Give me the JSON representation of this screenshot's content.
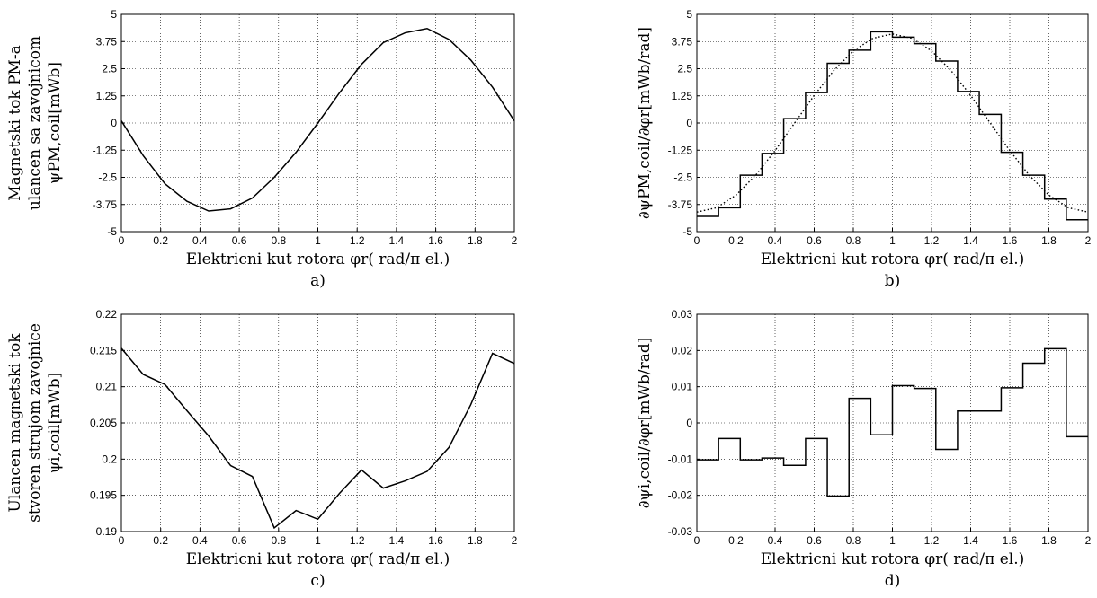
{
  "chart_data": [
    {
      "id": "a",
      "type": "line",
      "panel_label": "a)",
      "xlabel": "Elektricni kut rotora  φr( rad/π el.)",
      "ylabel_lines": [
        "Magnetski tok PM-a",
        "ulancen sa zavojnicom",
        "ψPM,coil[mWb]"
      ],
      "xlim": [
        0,
        2
      ],
      "ylim": [
        -5,
        5
      ],
      "xticks": [
        "0",
        "0.2",
        "0.4",
        "0.6",
        "0.8",
        "1",
        "1.2",
        "1.4",
        "1.6",
        "1.8",
        "2"
      ],
      "yticks": [
        "-5",
        "-3.75",
        "-2.5",
        "-1.25",
        "0",
        "1.25",
        "2.5",
        "3.75",
        "5"
      ],
      "grid": true,
      "series": [
        {
          "style": "solid",
          "x": [
            0,
            0.111,
            0.222,
            0.333,
            0.444,
            0.556,
            0.667,
            0.778,
            0.889,
            1.0,
            1.111,
            1.222,
            1.333,
            1.444,
            1.556,
            1.667,
            1.778,
            1.889,
            2.0
          ],
          "y": [
            0.1,
            -1.5,
            -2.8,
            -3.6,
            -4.05,
            -3.95,
            -3.45,
            -2.5,
            -1.35,
            0.0,
            1.4,
            2.7,
            3.7,
            4.15,
            4.35,
            3.85,
            2.9,
            1.65,
            0.1
          ]
        }
      ]
    },
    {
      "id": "b",
      "type": "line",
      "panel_label": "b)",
      "xlabel": "Elektricni kut rotora  φr( rad/π el.)",
      "ylabel_lines": [
        "∂ψPM,coil/∂φr[mWb/rad]"
      ],
      "xlim": [
        0,
        2
      ],
      "ylim": [
        -5,
        5
      ],
      "xticks": [
        "0",
        "0.2",
        "0.4",
        "0.6",
        "0.8",
        "1",
        "1.2",
        "1.4",
        "1.6",
        "1.8",
        "2"
      ],
      "yticks": [
        "-5",
        "-3.75",
        "-2.5",
        "-1.25",
        "0",
        "1.25",
        "2.5",
        "3.75",
        "5"
      ],
      "grid": true,
      "series": [
        {
          "style": "step",
          "x": [
            0,
            0.111,
            0.222,
            0.333,
            0.444,
            0.556,
            0.667,
            0.778,
            0.889,
            1.0,
            1.111,
            1.222,
            1.333,
            1.444,
            1.556,
            1.667,
            1.778,
            1.889,
            2.0
          ],
          "y": [
            -4.3,
            -3.9,
            -2.4,
            -1.4,
            0.2,
            1.4,
            2.75,
            3.35,
            4.2,
            3.95,
            3.65,
            2.85,
            1.45,
            0.4,
            -1.35,
            -2.4,
            -3.5,
            -4.45,
            -4.45
          ]
        },
        {
          "style": "dotted",
          "x": [
            0,
            0.1,
            0.2,
            0.3,
            0.4,
            0.5,
            0.6,
            0.7,
            0.8,
            0.9,
            1.0,
            1.1,
            1.2,
            1.3,
            1.4,
            1.5,
            1.6,
            1.7,
            1.8,
            1.9,
            2.0
          ],
          "y": [
            -4.1,
            -3.9,
            -3.32,
            -2.41,
            -1.27,
            0.0,
            1.27,
            2.41,
            3.32,
            3.9,
            4.1,
            3.9,
            3.32,
            2.41,
            1.27,
            0.0,
            -1.27,
            -2.41,
            -3.32,
            -3.9,
            -4.1
          ]
        }
      ]
    },
    {
      "id": "c",
      "type": "line",
      "panel_label": "c)",
      "xlabel": "Elektricni kut rotora  φr( rad/π el.)",
      "ylabel_lines": [
        "Ulancen magnetski tok",
        "stvoren strujom zavojnice",
        "ψi,coil[mWb]"
      ],
      "xlim": [
        0,
        2
      ],
      "ylim": [
        0.19,
        0.22
      ],
      "xticks": [
        "0",
        "0.2",
        "0.4",
        "0.6",
        "0.8",
        "1",
        "1.2",
        "1.4",
        "1.6",
        "1.8",
        "2"
      ],
      "yticks": [
        "0.19",
        "0.195",
        "0.2",
        "0.205",
        "0.21",
        "0.215",
        "0.22"
      ],
      "grid": true,
      "series": [
        {
          "style": "solid",
          "x": [
            0,
            0.111,
            0.222,
            0.333,
            0.444,
            0.556,
            0.667,
            0.778,
            0.889,
            1.0,
            1.111,
            1.222,
            1.333,
            1.444,
            1.556,
            1.667,
            1.778,
            1.889,
            2.0
          ],
          "y": [
            0.2153,
            0.2117,
            0.2103,
            0.2067,
            0.2032,
            0.1991,
            0.1976,
            0.1905,
            0.1929,
            0.1917,
            0.1953,
            0.1985,
            0.196,
            0.197,
            0.1983,
            0.2016,
            0.2075,
            0.2146,
            0.2132
          ]
        }
      ]
    },
    {
      "id": "d",
      "type": "line",
      "panel_label": "d)",
      "xlabel": "Elektricni kut rotora  φr( rad/π el.)",
      "ylabel_lines": [
        "∂ψi,coil/∂φr[mWb/rad]"
      ],
      "xlim": [
        0,
        2
      ],
      "ylim": [
        -0.03,
        0.03
      ],
      "xticks": [
        "0",
        "0.2",
        "0.4",
        "0.6",
        "0.8",
        "1",
        "1.2",
        "1.4",
        "1.6",
        "1.8",
        "2"
      ],
      "yticks": [
        "-0.03",
        "-0.02",
        "-0.01",
        "0",
        "0.01",
        "0.02",
        "0.03"
      ],
      "grid": true,
      "series": [
        {
          "style": "step",
          "x": [
            0,
            0.111,
            0.222,
            0.333,
            0.444,
            0.556,
            0.667,
            0.778,
            0.889,
            1.0,
            1.111,
            1.222,
            1.333,
            1.444,
            1.556,
            1.667,
            1.778,
            1.889,
            2.0
          ],
          "y": [
            -0.0102,
            -0.0043,
            -0.0102,
            -0.0097,
            -0.0117,
            -0.0043,
            -0.0202,
            0.0068,
            -0.0033,
            0.0103,
            0.0095,
            -0.0073,
            0.0033,
            0.0033,
            0.0097,
            0.0165,
            0.0205,
            -0.0038,
            -0.0038
          ]
        }
      ]
    }
  ]
}
